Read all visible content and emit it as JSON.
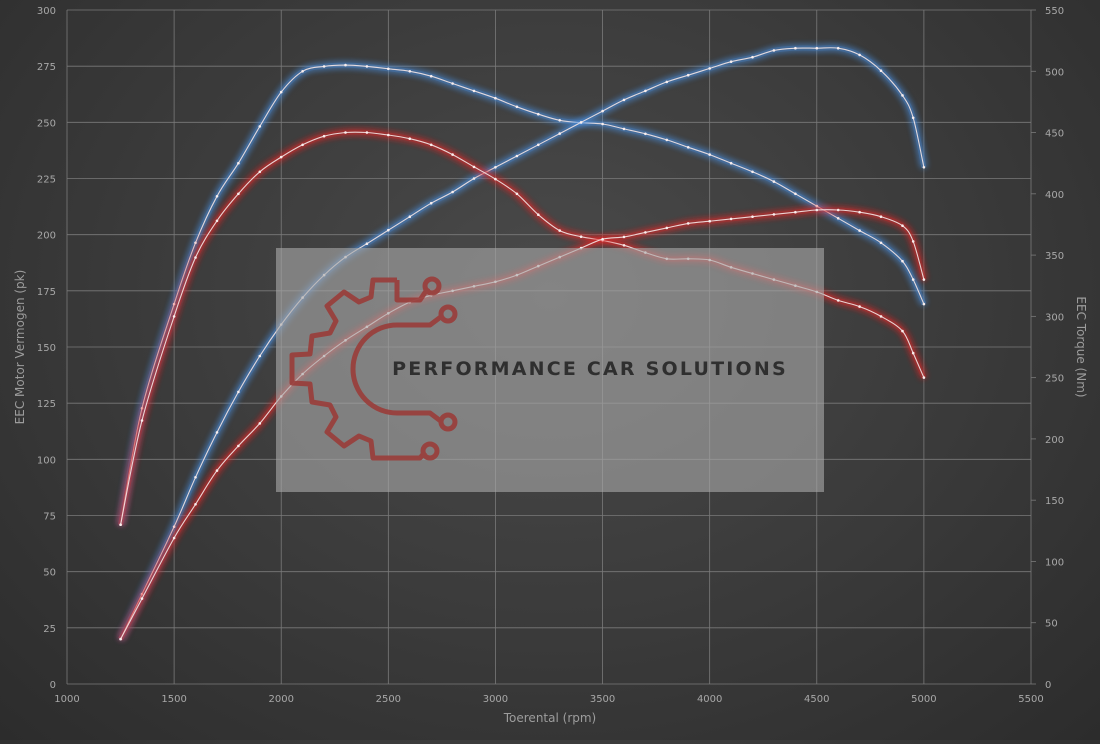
{
  "chart_data": {
    "type": "line",
    "xlabel": "Toerental (rpm)",
    "ylabel_left": "EEC Motor Vermogen (pk)",
    "ylabel_right": "EEC Torque (Nm)",
    "xlim": [
      1000,
      5500
    ],
    "ylim_left": [
      0,
      300
    ],
    "ylim_right": [
      0,
      550
    ],
    "x_ticks": [
      1000,
      1500,
      2000,
      2500,
      3000,
      3500,
      4000,
      4500,
      5000,
      5500
    ],
    "y_left_ticks": [
      0,
      25,
      50,
      75,
      100,
      125,
      150,
      175,
      200,
      225,
      250,
      275,
      300
    ],
    "y_right_ticks": [
      0,
      50,
      100,
      150,
      200,
      250,
      300,
      350,
      400,
      450,
      500,
      550
    ],
    "grid": true,
    "watermark": "PERFORMANCE CAR SOLUTIONS",
    "colors": {
      "tuned": "#4a8fe0",
      "stock": "#e02828",
      "grid": "#7a7a7a",
      "overlay": "#a0a0a0",
      "logo": "#9a3d3a"
    },
    "series": [
      {
        "axis": "right",
        "color": "#4a8fe0",
        "x": [
          1250,
          1350,
          1500,
          1600,
          1700,
          1800,
          1900,
          2000,
          2100,
          2200,
          2300,
          2400,
          2500,
          2600,
          2700,
          2800,
          2900,
          3000,
          3100,
          3200,
          3300,
          3400,
          3500,
          3600,
          3700,
          3800,
          3900,
          4000,
          4100,
          4200,
          4300,
          4400,
          4500,
          4600,
          4700,
          4800,
          4900,
          4950,
          5000
        ],
        "y": [
          130,
          225,
          310,
          360,
          398,
          425,
          455,
          483,
          500,
          504,
          505,
          504,
          502,
          500,
          496,
          490,
          484,
          478,
          471,
          465,
          460,
          458,
          457,
          453,
          449,
          444,
          438,
          432,
          425,
          418,
          410,
          400,
          390,
          380,
          370,
          360,
          345,
          330,
          310
        ]
      },
      {
        "axis": "left",
        "color": "#4a8fe0",
        "x": [
          1250,
          1350,
          1500,
          1600,
          1700,
          1800,
          1900,
          2000,
          2100,
          2200,
          2300,
          2400,
          2500,
          2600,
          2700,
          2800,
          2900,
          3000,
          3100,
          3200,
          3300,
          3400,
          3500,
          3600,
          3700,
          3800,
          3900,
          4000,
          4100,
          4200,
          4300,
          4400,
          4500,
          4600,
          4700,
          4800,
          4900,
          4950,
          5000
        ],
        "y": [
          20,
          40,
          70,
          92,
          112,
          130,
          146,
          160,
          172,
          182,
          190,
          196,
          202,
          208,
          214,
          219,
          225,
          230,
          235,
          240,
          245,
          250,
          255,
          260,
          264,
          268,
          271,
          274,
          277,
          279,
          282,
          283,
          283,
          283,
          280,
          273,
          262,
          252,
          230
        ]
      },
      {
        "axis": "right",
        "color": "#e02828",
        "x": [
          1250,
          1350,
          1500,
          1600,
          1700,
          1800,
          1900,
          2000,
          2100,
          2200,
          2300,
          2400,
          2500,
          2600,
          2700,
          2800,
          2900,
          3000,
          3100,
          3200,
          3300,
          3400,
          3500,
          3600,
          3700,
          3800,
          3900,
          4000,
          4100,
          4200,
          4300,
          4400,
          4500,
          4600,
          4700,
          4800,
          4900,
          4950,
          5000
        ],
        "y": [
          130,
          215,
          300,
          348,
          378,
          400,
          418,
          430,
          440,
          447,
          450,
          450,
          448,
          445,
          440,
          432,
          422,
          412,
          400,
          383,
          370,
          365,
          362,
          358,
          352,
          347,
          347,
          346,
          340,
          335,
          330,
          325,
          320,
          313,
          308,
          300,
          288,
          270,
          250
        ]
      },
      {
        "axis": "left",
        "color": "#e02828",
        "x": [
          1250,
          1350,
          1500,
          1600,
          1700,
          1800,
          1900,
          2000,
          2100,
          2200,
          2300,
          2400,
          2500,
          2600,
          2700,
          2800,
          2900,
          3000,
          3100,
          3200,
          3300,
          3400,
          3500,
          3600,
          3700,
          3800,
          3900,
          4000,
          4100,
          4200,
          4300,
          4400,
          4500,
          4600,
          4700,
          4800,
          4900,
          4950,
          5000
        ],
        "y": [
          20,
          38,
          65,
          80,
          95,
          106,
          116,
          128,
          138,
          146,
          153,
          159,
          165,
          170,
          173,
          175,
          177,
          179,
          182,
          186,
          190,
          194,
          198,
          199,
          201,
          203,
          205,
          206,
          207,
          208,
          209,
          210,
          211,
          211,
          210,
          208,
          204,
          197,
          180
        ]
      }
    ]
  }
}
